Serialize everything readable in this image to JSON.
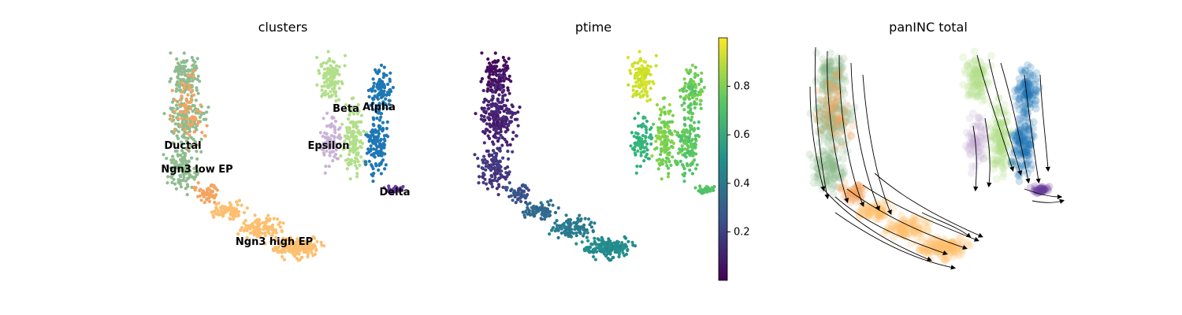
{
  "figure": {
    "panels": 3
  },
  "chart_data": [
    {
      "type": "scatter",
      "title": "clusters",
      "legend": "on data",
      "axes_visible": false,
      "clusters": [
        {
          "name": "Ductal",
          "color": "#8fbc8f"
        },
        {
          "name": "Ngn3 low EP",
          "color": "#f4a460"
        },
        {
          "name": "Ngn3 high EP",
          "color": "#fdbf6f"
        },
        {
          "name": "Epsilon",
          "color": "#cab2d6"
        },
        {
          "name": "Beta",
          "color": "#b2df8a"
        },
        {
          "name": "Alpha",
          "color": "#1f78b4"
        },
        {
          "name": "Delta",
          "color": "#6a3d9a"
        }
      ]
    },
    {
      "type": "scatter",
      "title": "ptime",
      "colormap": "viridis",
      "colorbar": {
        "range": [
          0.0,
          1.0
        ],
        "ticks": [
          0.2,
          0.4,
          0.6,
          0.8
        ],
        "tick_labels": [
          "0.2",
          "0.4",
          "0.6",
          "0.8"
        ]
      },
      "axes_visible": false
    },
    {
      "type": "scatter",
      "title": "panINC total",
      "overlay": "velocity streamlines",
      "axes_visible": false
    }
  ]
}
